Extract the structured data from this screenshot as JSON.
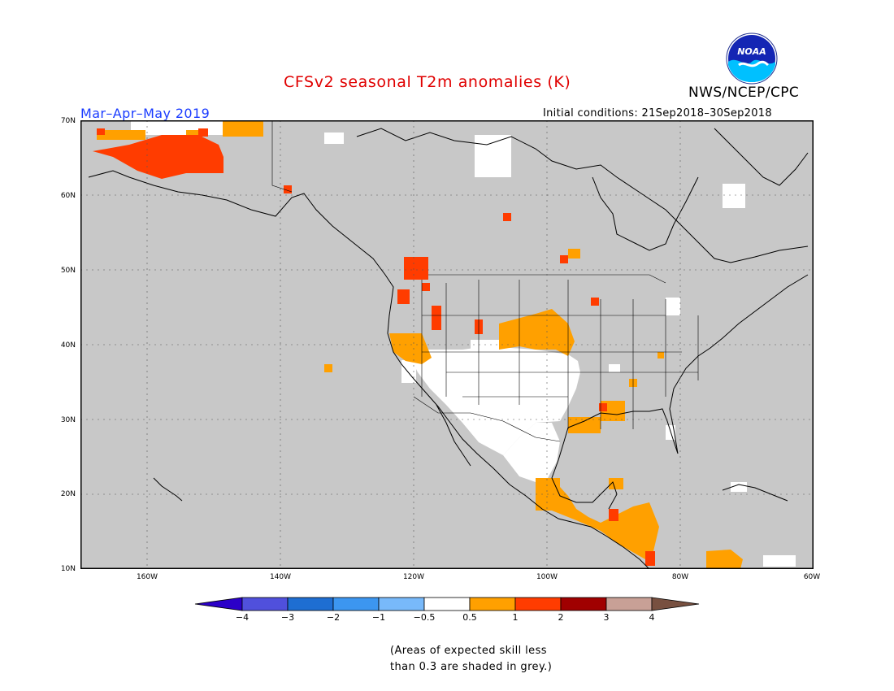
{
  "header": {
    "title": "CFSv2 seasonal T2m anomalies (K)",
    "season": "Mar–Apr–May 2019",
    "initial_conditions": "Initial conditions: 21Sep2018–30Sep2018",
    "agency": "NWS/NCEP/CPC",
    "logo_text": "NOAA"
  },
  "map": {
    "region": "North America",
    "lat_labels": [
      "70N",
      "60N",
      "50N",
      "40N",
      "30N",
      "20N",
      "10N"
    ],
    "lon_labels": [
      "160W",
      "140W",
      "120W",
      "100W",
      "80W",
      "60W"
    ],
    "background_color": "#c8c8c8",
    "anomaly_regions": [
      {
        "area": "Alaska North Slope",
        "class": "1 to 2",
        "color": "#ff3c00"
      },
      {
        "area": "Pacific Northwest / Northern Rockies",
        "class": "1 to 2",
        "color": "#ff3c00"
      },
      {
        "area": "Central Great Plains",
        "class": "0.5 to 1",
        "color": "#ffa000"
      },
      {
        "area": "Desert Southwest / Northern Mexico",
        "class": "-0.5 to 0.5",
        "color": "#ffffff"
      },
      {
        "area": "Southern Mexico / Central America",
        "class": "0.5 to 1",
        "color": "#ffa000"
      },
      {
        "area": "Gulf Coast",
        "class": "0.5 to 1",
        "color": "#ffa000"
      }
    ]
  },
  "colorbar": {
    "labels": [
      "−4",
      "−3",
      "−2",
      "−1",
      "−0.5",
      "0.5",
      "1",
      "2",
      "3",
      "4"
    ],
    "colors": [
      "#2b00c8",
      "#5050dc",
      "#1e6ed2",
      "#3c96f0",
      "#78b9fa",
      "#ffffff",
      "#ffa000",
      "#ff3c00",
      "#a00000",
      "#c8a096",
      "#785040"
    ]
  },
  "note": {
    "line1": "(Areas of expected skill less",
    "line2": "than 0.3 are shaded in grey.)"
  }
}
